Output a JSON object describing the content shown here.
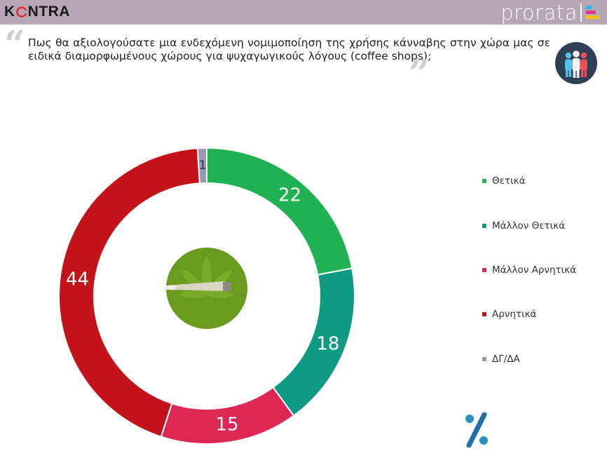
{
  "header": {
    "brand_left": "KONTRA",
    "brand_right": "prorata"
  },
  "question": {
    "text": "Πως θα αξιολογούσατε μια ενδεχόμενη νομιμοποίηση της χρήσης κάνναβης στην χώρα μας σε ειδικά διαμορφωμένους χώρους για ψυχαγωγικούς λόγους (coffee shops);"
  },
  "icons": {
    "quote_open": "“",
    "quote_close": "”",
    "people": "people-group-icon",
    "center": "cannabis-joint-icon",
    "percent": "%"
  },
  "colors": {
    "topbar": "#b7a6b5",
    "positive": "#1fb152",
    "rather_positive": "#0f9a84",
    "rather_negative": "#dd2854",
    "negative": "#c3121a",
    "dk_na": "#9a97b0"
  },
  "chart_data": {
    "type": "pie",
    "donut": true,
    "categories": [
      "Θετικά",
      "Μάλλον Θετικά",
      "Μάλλον Αρνητικά",
      "Αρνητικά",
      "ΔΓ/ΔΑ"
    ],
    "values": [
      22,
      18,
      15,
      44,
      1
    ],
    "colors": [
      "#1fb152",
      "#0f9a84",
      "#dd2854",
      "#c3121a",
      "#9a97b0"
    ],
    "legend_position": "right"
  }
}
